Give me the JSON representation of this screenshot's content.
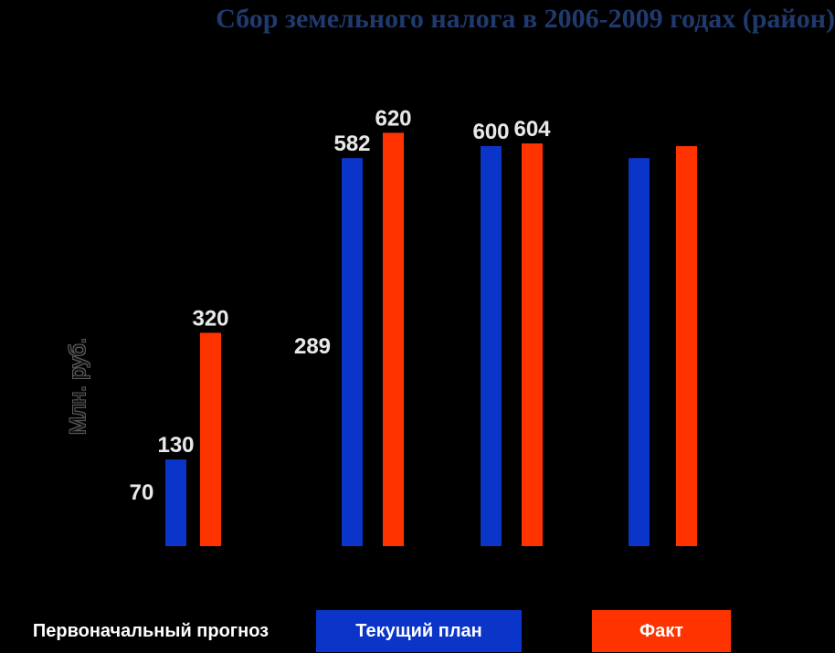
{
  "chart_data": {
    "type": "bar",
    "title": "Сбор земельного налога в 2006-2009 годах (район)",
    "ylabel": "Млн. руб.",
    "xlabel": "",
    "categories": [
      "",
      "",
      "",
      ""
    ],
    "series": [
      {
        "name": "Текущий план",
        "color": "#0a35c8",
        "values": [
          130,
          582,
          600,
          582
        ],
        "labels": [
          "130",
          "582",
          "600",
          ""
        ]
      },
      {
        "name": "Факт",
        "color": "#ff3300",
        "values": [
          320,
          620,
          604,
          600
        ],
        "labels": [
          "320",
          "620",
          "604",
          ""
        ]
      }
    ],
    "initial_forecast": {
      "name": "Первоначальный прогноз",
      "values": [
        70,
        289
      ],
      "labels": [
        "70",
        "289"
      ]
    },
    "ylim": [
      0,
      650
    ],
    "grid": false,
    "legend_position": "bottom"
  }
}
